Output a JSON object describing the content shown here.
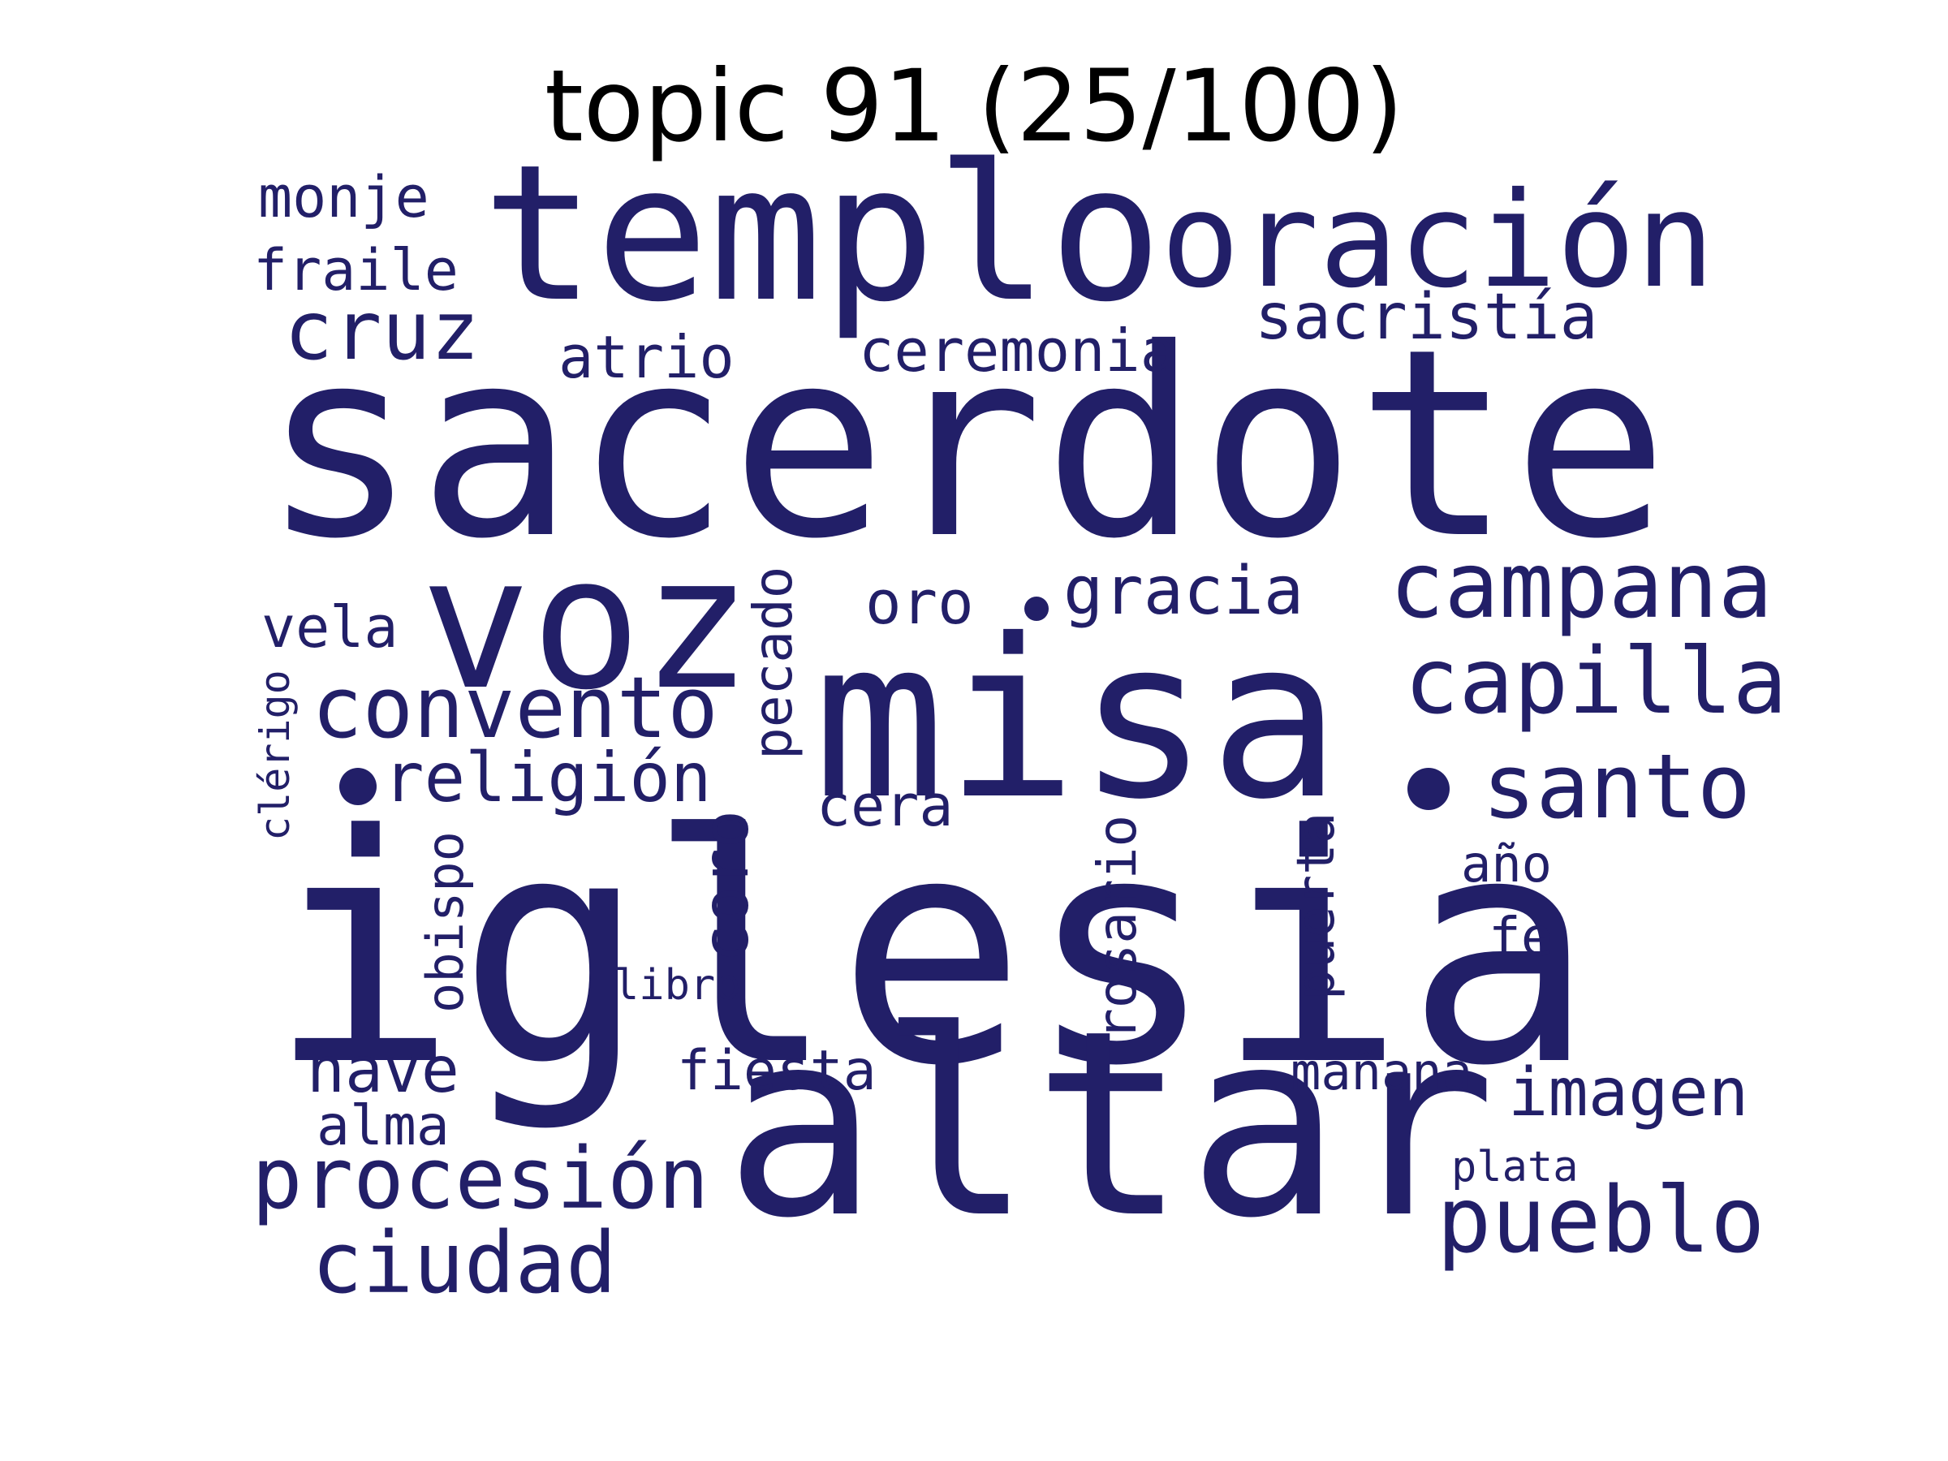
{
  "title": "topic 91 (25/100)",
  "colors": {
    "word": "#221f68",
    "title": "#000000",
    "background": "#ffffff"
  },
  "words": [
    {
      "id": "iglesia",
      "text": "iglesia",
      "orientation": "horizontal"
    },
    {
      "id": "sacerdote",
      "text": "sacerdote",
      "orientation": "horizontal"
    },
    {
      "id": "altar",
      "text": "altar",
      "orientation": "horizontal"
    },
    {
      "id": "misa",
      "text": "misa",
      "orientation": "horizontal"
    },
    {
      "id": "templo",
      "text": "templo",
      "orientation": "horizontal"
    },
    {
      "id": "oracion",
      "text": "oración",
      "orientation": "horizontal"
    },
    {
      "id": "voz",
      "text": "voz",
      "orientation": "horizontal"
    },
    {
      "id": "campana",
      "text": "campana",
      "orientation": "horizontal"
    },
    {
      "id": "capilla",
      "text": "capilla",
      "orientation": "horizontal"
    },
    {
      "id": "convento",
      "text": "convento",
      "orientation": "horizontal"
    },
    {
      "id": "santo",
      "text": "santo",
      "orientation": "horizontal"
    },
    {
      "id": "procesion",
      "text": "procesión",
      "orientation": "horizontal"
    },
    {
      "id": "pueblo",
      "text": "pueblo",
      "orientation": "horizontal"
    },
    {
      "id": "ciudad",
      "text": "ciudad",
      "orientation": "horizontal"
    },
    {
      "id": "cruz",
      "text": "cruz",
      "orientation": "horizontal"
    },
    {
      "id": "religion",
      "text": "religión",
      "orientation": "horizontal"
    },
    {
      "id": "gracia",
      "text": "gracia",
      "orientation": "horizontal"
    },
    {
      "id": "sacristia",
      "text": "sacristía",
      "orientation": "horizontal"
    },
    {
      "id": "ceremonia",
      "text": "ceremonia",
      "orientation": "horizontal"
    },
    {
      "id": "imagen",
      "text": "imagen",
      "orientation": "horizontal"
    },
    {
      "id": "nave",
      "text": "nave",
      "orientation": "horizontal"
    },
    {
      "id": "coro",
      "text": "coro",
      "orientation": "vertical"
    },
    {
      "id": "fraile",
      "text": "fraile",
      "orientation": "horizontal"
    },
    {
      "id": "monje",
      "text": "monje",
      "orientation": "horizontal"
    },
    {
      "id": "atrio",
      "text": "atrio",
      "orientation": "horizontal"
    },
    {
      "id": "vela",
      "text": "vela",
      "orientation": "horizontal"
    },
    {
      "id": "pecado",
      "text": "pecado",
      "orientation": "vertical"
    },
    {
      "id": "cera",
      "text": "cera",
      "orientation": "horizontal"
    },
    {
      "id": "fiesta",
      "text": "fiesta",
      "orientation": "horizontal"
    },
    {
      "id": "rosario",
      "text": "rosario",
      "orientation": "vertical"
    },
    {
      "id": "puerta",
      "text": "puerta",
      "orientation": "vertical"
    },
    {
      "id": "obispo",
      "text": "obispo",
      "orientation": "vertical"
    },
    {
      "id": "alma",
      "text": "alma",
      "orientation": "horizontal"
    },
    {
      "id": "oro",
      "text": "oro",
      "orientation": "horizontal"
    },
    {
      "id": "manana",
      "text": "mañana",
      "orientation": "horizontal"
    },
    {
      "id": "fe",
      "text": "fe",
      "orientation": "horizontal"
    },
    {
      "id": "ano",
      "text": "año",
      "orientation": "horizontal"
    },
    {
      "id": "clerigo",
      "text": "clérigo",
      "orientation": "vertical"
    },
    {
      "id": "libro",
      "text": "libro",
      "orientation": "horizontal"
    },
    {
      "id": "plata",
      "text": "plata",
      "orientation": "horizontal"
    }
  ]
}
